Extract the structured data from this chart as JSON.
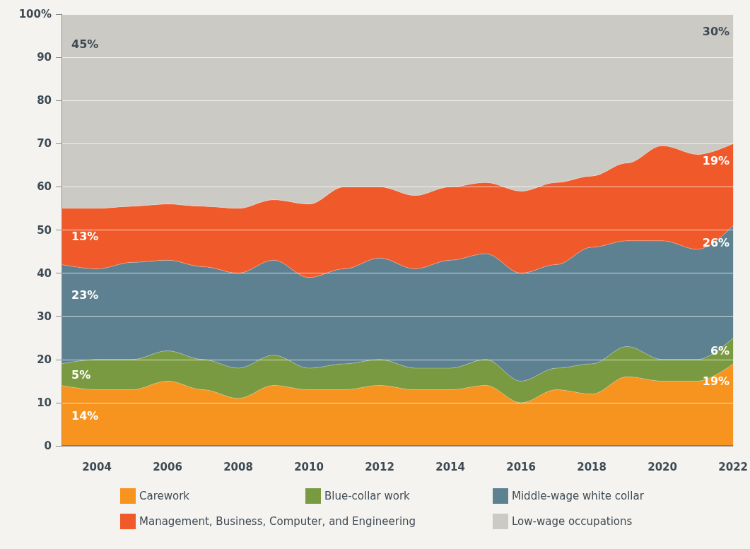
{
  "chart_data": {
    "type": "area",
    "stacked": true,
    "x": [
      2003,
      2004,
      2005,
      2006,
      2007,
      2008,
      2009,
      2010,
      2011,
      2012,
      2013,
      2014,
      2015,
      2016,
      2017,
      2018,
      2019,
      2020,
      2021,
      2022
    ],
    "series": [
      {
        "name": "Carework",
        "color": "#f7941f",
        "values": [
          14,
          13,
          13,
          15,
          13,
          11,
          14,
          13,
          13,
          14,
          13,
          13,
          14,
          10,
          13,
          12,
          16,
          15,
          15,
          19
        ],
        "value_labels": [
          "14%",
          null,
          null,
          null,
          null,
          null,
          null,
          null,
          null,
          null,
          null,
          null,
          null,
          null,
          null,
          null,
          null,
          null,
          null,
          "19%"
        ]
      },
      {
        "name": "Blue-collar work",
        "color": "#7a9a42",
        "values": [
          5,
          7,
          7,
          7,
          7,
          7,
          7,
          5,
          6,
          6,
          5,
          5,
          6,
          5,
          5,
          7,
          7,
          5,
          5,
          6
        ],
        "value_labels": [
          "5%",
          null,
          null,
          null,
          null,
          null,
          null,
          null,
          null,
          null,
          null,
          null,
          null,
          null,
          null,
          null,
          null,
          null,
          null,
          "6%"
        ]
      },
      {
        "name": "Middle-wage white collar",
        "color": "#5e8192",
        "values": [
          23,
          21,
          22.5,
          21,
          21.5,
          22,
          22,
          21,
          22,
          23.5,
          23,
          25,
          24.5,
          25,
          24,
          27,
          24.5,
          27.5,
          25.5,
          26
        ],
        "value_labels": [
          "23%",
          null,
          null,
          null,
          null,
          null,
          null,
          null,
          null,
          null,
          null,
          null,
          null,
          null,
          null,
          null,
          null,
          null,
          null,
          "26%"
        ]
      },
      {
        "name": "Management, Business, Computer, and Engineering",
        "color": "#f05a2b",
        "values": [
          13,
          14,
          13,
          13,
          14,
          15,
          14,
          17,
          19,
          16.5,
          17,
          17,
          16.5,
          19,
          19,
          16.5,
          18,
          22,
          22,
          19
        ],
        "value_labels": [
          "13%",
          null,
          null,
          null,
          null,
          null,
          null,
          null,
          null,
          null,
          null,
          null,
          null,
          null,
          null,
          null,
          null,
          null,
          null,
          "19%"
        ]
      },
      {
        "name": "Low-wage occupations",
        "color": "#cccac4",
        "values": [
          45,
          45,
          44.5,
          44,
          44.5,
          45,
          43,
          44,
          40,
          40,
          42,
          40,
          39,
          41,
          39,
          37.5,
          34.5,
          30.5,
          32.5,
          30
        ],
        "value_labels": [
          "45%",
          null,
          null,
          null,
          null,
          null,
          null,
          null,
          null,
          null,
          null,
          null,
          null,
          null,
          null,
          null,
          null,
          null,
          null,
          "30%"
        ]
      }
    ],
    "xlim": [
      2003,
      2022
    ],
    "xticks": [
      2004,
      2006,
      2008,
      2010,
      2012,
      2014,
      2016,
      2018,
      2020,
      2022
    ],
    "ylim": [
      0,
      100
    ],
    "yticks": [
      0,
      10,
      20,
      30,
      40,
      50,
      60,
      70,
      80,
      90,
      {
        "value": 100,
        "label": "100%"
      }
    ],
    "grid": "y",
    "legend": "bottom"
  }
}
